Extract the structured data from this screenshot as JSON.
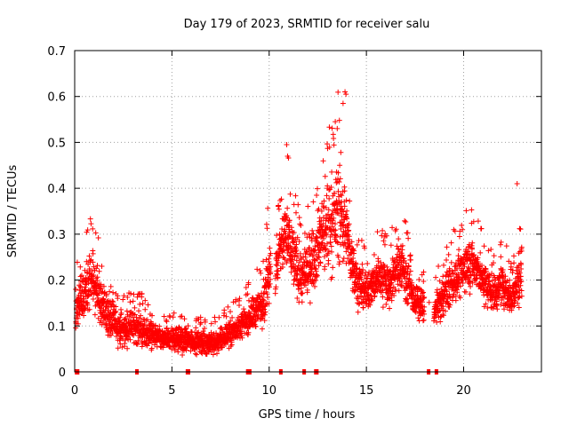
{
  "chart_data": {
    "type": "scatter",
    "title": "Day 179 of 2023, SRMTID for receiver salu",
    "xlabel": "GPS time / hours",
    "ylabel": "SRMTID / TECUs",
    "xlim": [
      0,
      24.0
    ],
    "ylim": [
      0,
      0.7
    ],
    "xticks": [
      "0",
      "5",
      "10",
      "15",
      "20"
    ],
    "yticks": [
      "0",
      "0.1",
      "0.2",
      "0.3",
      "0.4",
      "0.5",
      "0.6",
      "0.7"
    ],
    "grid": true,
    "marker": "+",
    "color": "#ff0000",
    "envelope": {
      "x": [
        0.0,
        0.3,
        0.6,
        0.9,
        1.2,
        1.5,
        1.8,
        2.0,
        2.2,
        2.5,
        3.0,
        3.5,
        4.0,
        4.5,
        5.0,
        5.5,
        6.0,
        6.5,
        7.0,
        7.5,
        8.0,
        8.5,
        9.0,
        9.5,
        9.8,
        10.0,
        10.3,
        10.6,
        10.9,
        11.2,
        11.5,
        11.8,
        12.1,
        12.4,
        12.7,
        13.0,
        13.3,
        13.6,
        13.9,
        14.2,
        14.5,
        14.8,
        15.0,
        15.3,
        15.6,
        15.9,
        16.2,
        16.5,
        16.8,
        17.1,
        17.4,
        17.7,
        18.0,
        18.5,
        18.9,
        19.2,
        19.5,
        19.8,
        20.1,
        20.4,
        20.7,
        21.0,
        21.3,
        21.6,
        21.9,
        22.2,
        22.5,
        22.8,
        23.0
      ],
      "center": [
        0.13,
        0.15,
        0.18,
        0.2,
        0.17,
        0.14,
        0.12,
        0.11,
        0.1,
        0.09,
        0.1,
        0.09,
        0.08,
        0.07,
        0.075,
        0.07,
        0.07,
        0.065,
        0.06,
        0.07,
        0.085,
        0.1,
        0.12,
        0.14,
        0.17,
        0.23,
        0.21,
        0.27,
        0.3,
        0.26,
        0.22,
        0.2,
        0.24,
        0.26,
        0.3,
        0.32,
        0.33,
        0.36,
        0.32,
        0.25,
        0.2,
        0.18,
        0.17,
        0.19,
        0.21,
        0.2,
        0.19,
        0.22,
        0.24,
        0.2,
        0.16,
        0.15,
        0.14,
        0.13,
        0.16,
        0.18,
        0.2,
        0.21,
        0.23,
        0.24,
        0.22,
        0.2,
        0.18,
        0.17,
        0.19,
        0.18,
        0.16,
        0.2,
        0.22
      ],
      "spread": [
        0.06,
        0.07,
        0.08,
        0.1,
        0.08,
        0.06,
        0.06,
        0.05,
        0.05,
        0.05,
        0.05,
        0.05,
        0.04,
        0.035,
        0.035,
        0.04,
        0.035,
        0.035,
        0.035,
        0.035,
        0.04,
        0.04,
        0.05,
        0.06,
        0.08,
        0.1,
        0.08,
        0.1,
        0.12,
        0.1,
        0.09,
        0.08,
        0.1,
        0.1,
        0.13,
        0.15,
        0.14,
        0.17,
        0.12,
        0.08,
        0.07,
        0.07,
        0.06,
        0.06,
        0.07,
        0.07,
        0.07,
        0.08,
        0.09,
        0.07,
        0.05,
        0.05,
        0.05,
        0.05,
        0.06,
        0.06,
        0.07,
        0.07,
        0.08,
        0.08,
        0.07,
        0.07,
        0.06,
        0.06,
        0.06,
        0.06,
        0.05,
        0.08,
        0.1
      ]
    },
    "gaps_x": [
      10.2,
      18.1,
      18.35
    ],
    "peaks": [
      {
        "x": 13.9,
        "y": 0.61
      },
      {
        "x": 13.95,
        "y": 0.605
      },
      {
        "x": 13.8,
        "y": 0.585
      },
      {
        "x": 10.9,
        "y": 0.495
      },
      {
        "x": 10.95,
        "y": 0.47
      },
      {
        "x": 13.4,
        "y": 0.545
      },
      {
        "x": 13.5,
        "y": 0.53
      },
      {
        "x": 22.75,
        "y": 0.41
      }
    ],
    "zero_markers_x": [
      0.1,
      0.15,
      3.2,
      5.8,
      5.85,
      8.9,
      9.0,
      10.6,
      11.8,
      12.4,
      12.45,
      18.2,
      18.6
    ]
  }
}
